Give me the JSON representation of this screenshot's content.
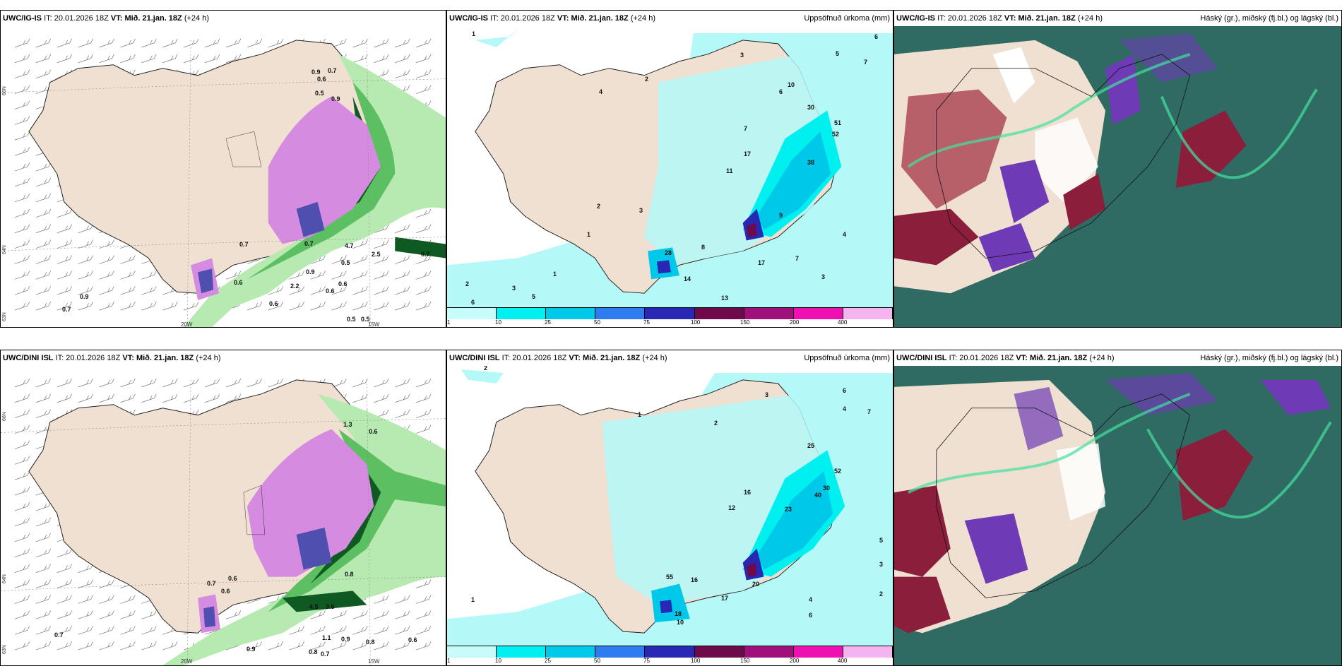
{
  "panels": {
    "p1": {
      "model": "UWC/IG-IS",
      "it_label": "IT:",
      "it_value": "20.01.2026 18Z",
      "vt_label": "VT:",
      "vt_value": "Mið. 21.jan. 18Z",
      "lead": "(+24 h)",
      "right": ""
    },
    "p2": {
      "model": "UWC/IG-IS",
      "it_label": "IT:",
      "it_value": "20.01.2026 18Z",
      "vt_label": "VT:",
      "vt_value": "Mið. 21.jan. 18Z",
      "lead": "(+24 h)",
      "right": "Uppsöfnuð úrkoma (mm)"
    },
    "p3": {
      "model": "UWC/IG-IS",
      "it_label": "IT:",
      "it_value": "20.01.2026 18Z",
      "vt_label": "VT:",
      "vt_value": "Mið. 21.jan. 18Z",
      "lead": "(+24 h)",
      "right": "Háský (gr.), miðský (fj.bl.) og lágský (bl.)"
    },
    "p4": {
      "model": "UWC/DINI ISL",
      "it_label": "IT:",
      "it_value": "20.01.2026 18Z",
      "vt_label": "VT:",
      "vt_value": "Mið. 21.jan. 18Z",
      "lead": "(+24 h)",
      "right": ""
    },
    "p5": {
      "model": "UWC/DINI ISL",
      "it_label": "IT:",
      "it_value": "20.01.2026 18Z",
      "vt_label": "VT:",
      "vt_value": "Mið. 21.jan. 18Z",
      "lead": "(+24 h)",
      "right": "Uppsöfnuð úrkoma (mm)"
    },
    "p6": {
      "model": "UWC/DINI ISL",
      "it_label": "IT:",
      "it_value": "20.01.2026 18Z",
      "vt_label": "VT:",
      "vt_value": "Mið. 21.jan. 18Z",
      "lead": "(+24 h)",
      "right": "Háský (gr.), miðský (fj.bl.) og lágský (bl.)"
    }
  },
  "axes": {
    "lat_66": "66N",
    "lat_64": "64N",
    "lat_65": "65N",
    "lat_63": "63N",
    "lon_20": "20W",
    "lon_15": "15W",
    "lon_25": "25W"
  },
  "precip_scale": {
    "ticks": [
      "1",
      "10",
      "25",
      "50",
      "75",
      "100",
      "150",
      "200",
      "400"
    ],
    "colors": [
      "#c8fbfb",
      "#00f0f0",
      "#00c8e8",
      "#2f7cf0",
      "#2828b4",
      "#6e0a4a",
      "#a0107a",
      "#ee10b0",
      "#f4b4f0"
    ]
  },
  "colors": {
    "land": "#efe0d2",
    "sea_precip": "#b4f8f8",
    "green1": "#b6eab0",
    "green2": "#5cbf62",
    "green3": "#0f5a23",
    "snow": "#d58be0",
    "cloud_bg": "#2f6b62",
    "cloud_high": "#9a9a9a",
    "cloud_mid": "#6e3ab5",
    "cloud_low": "#8b1e3a"
  },
  "p1_labels": [
    "0.9",
    "0.7",
    "0.6",
    "0.5",
    "0.9",
    "0.7",
    "4.7",
    "2.5",
    "0.7",
    "0.9",
    "2.2",
    "0.6",
    "0.6",
    "0.6",
    "0.5",
    "0.5",
    "0.5",
    "0.7",
    "0.9",
    "0.7",
    "0.6"
  ],
  "p2_labels": [
    "1",
    "6",
    "3",
    "2",
    "5",
    "6",
    "7",
    "7",
    "30",
    "51",
    "52",
    "38",
    "17",
    "11",
    "9",
    "28",
    "14",
    "17",
    "13",
    "8",
    "3",
    "4",
    "2",
    "1",
    "3",
    "10",
    "7",
    "6",
    "5",
    "4",
    "2",
    "3",
    "1"
  ],
  "p4_labels": [
    "1.3",
    "0.6",
    "0.6",
    "0.7",
    "0.6",
    "0.8",
    "4.5",
    "3.6",
    "1.1",
    "0.9",
    "0.8",
    "0.7",
    "0.6",
    "0.7",
    "0.9",
    "0.8"
  ],
  "p5_labels": [
    "2",
    "1",
    "3",
    "2",
    "4",
    "6",
    "7",
    "25",
    "52",
    "30",
    "40",
    "23",
    "16",
    "12",
    "20",
    "17",
    "16",
    "55",
    "10",
    "18",
    "5",
    "3",
    "2",
    "1",
    "6",
    "4"
  ]
}
